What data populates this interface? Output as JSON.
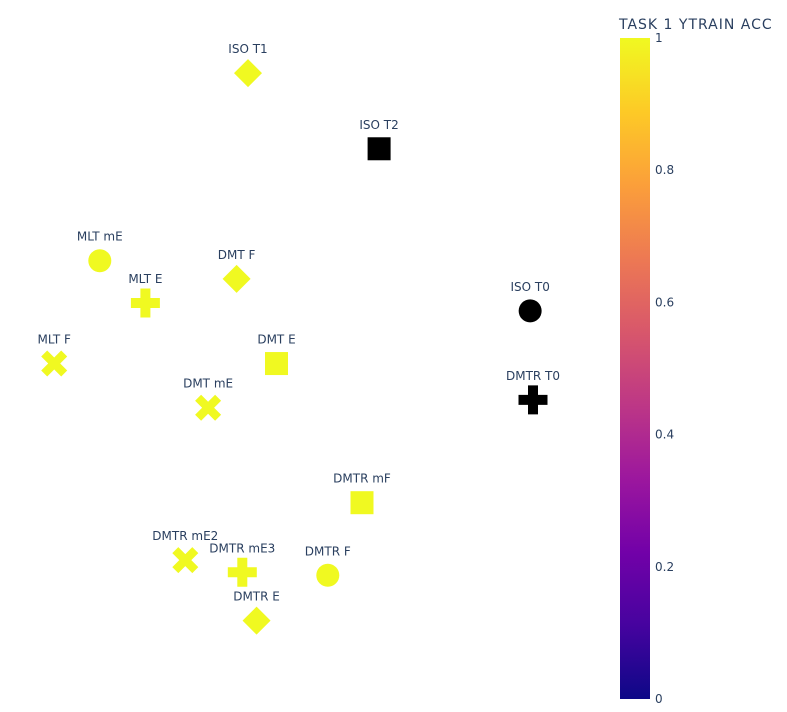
{
  "chart_data": {
    "type": "scatter",
    "xlim": [
      0,
      100
    ],
    "ylim": [
      0,
      100
    ],
    "grid": false,
    "colorbar": {
      "title": "TASK 1 YTRAIN ACC",
      "range": [
        0,
        1
      ],
      "ticks": [
        0,
        0.2,
        0.4,
        0.6,
        0.8,
        1
      ],
      "tick_labels": [
        "0",
        "0.2",
        "0.4",
        "0.6",
        "0.8",
        "1"
      ],
      "colorscale": [
        "#0d0887",
        "#46039f",
        "#7201a8",
        "#9c179e",
        "#bd3786",
        "#d8576b",
        "#ed7953",
        "#fb9f3a",
        "#fdca26",
        "#f0f921"
      ]
    },
    "points": [
      {
        "label": "ISO T1",
        "x": 40.0,
        "y": 97.0,
        "value": 1,
        "symbol": "diamond"
      },
      {
        "label": "ISO T2",
        "x": 63.0,
        "y": 84.5,
        "value": 0,
        "symbol": "square"
      },
      {
        "label": "MLT mE",
        "x": 14.0,
        "y": 66.0,
        "value": 1,
        "symbol": "circle"
      },
      {
        "label": "DMT F",
        "x": 38.0,
        "y": 63.0,
        "value": 1,
        "symbol": "diamond"
      },
      {
        "label": "MLT E",
        "x": 22.0,
        "y": 59.0,
        "value": 1,
        "symbol": "cross"
      },
      {
        "label": "ISO T0",
        "x": 89.5,
        "y": 57.7,
        "value": 0,
        "symbol": "circle"
      },
      {
        "label": "MLT F",
        "x": 6.0,
        "y": 49.0,
        "value": 1,
        "symbol": "x"
      },
      {
        "label": "DMT E",
        "x": 45.0,
        "y": 49.0,
        "value": 1,
        "symbol": "square"
      },
      {
        "label": "DMTR T0",
        "x": 90.0,
        "y": 43.0,
        "value": 0,
        "symbol": "cross"
      },
      {
        "label": "DMT mE",
        "x": 33.0,
        "y": 41.7,
        "value": 1,
        "symbol": "x"
      },
      {
        "label": "DMTR mF",
        "x": 60.0,
        "y": 26.0,
        "value": 1,
        "symbol": "square"
      },
      {
        "label": "DMTR mE2",
        "x": 29.0,
        "y": 16.5,
        "value": 1,
        "symbol": "x"
      },
      {
        "label": "DMTR mE3",
        "x": 39.0,
        "y": 14.5,
        "value": 1,
        "symbol": "cross"
      },
      {
        "label": "DMTR F",
        "x": 54.0,
        "y": 14.0,
        "value": 1,
        "symbol": "circle"
      },
      {
        "label": "DMTR E",
        "x": 41.5,
        "y": 6.5,
        "value": 1,
        "symbol": "diamond"
      }
    ]
  }
}
